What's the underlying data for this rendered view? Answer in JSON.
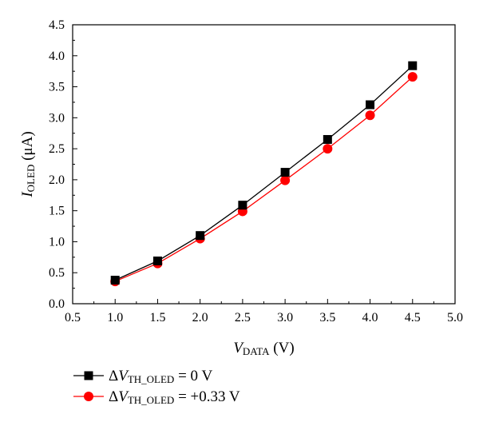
{
  "chart_data": {
    "type": "line",
    "x": [
      1.0,
      1.5,
      2.0,
      2.5,
      3.0,
      3.5,
      4.0,
      4.5
    ],
    "series": [
      {
        "name": "ΔVTH_OLED = 0 V",
        "name_parts": {
          "delta": "Δ",
          "var": "V",
          "sub": "TH_OLED",
          "rest": " = 0 V"
        },
        "values": [
          0.38,
          0.69,
          1.1,
          1.59,
          2.12,
          2.65,
          3.21,
          3.84
        ],
        "color": "#000000",
        "marker": "square"
      },
      {
        "name": "ΔVTH_OLED = +0.33 V",
        "name_parts": {
          "delta": "Δ",
          "var": "V",
          "sub": "TH_OLED",
          "rest": " = +0.33 V"
        },
        "values": [
          0.36,
          0.65,
          1.05,
          1.49,
          1.99,
          2.5,
          3.04,
          3.66
        ],
        "color": "#ff0000",
        "marker": "circle"
      }
    ],
    "xlim": [
      0.5,
      5.0
    ],
    "ylim": [
      0.0,
      4.5
    ],
    "xticks": [
      "0.5",
      "1.0",
      "1.5",
      "2.0",
      "2.5",
      "3.0",
      "3.5",
      "4.0",
      "4.5",
      "5.0"
    ],
    "yticks": [
      "0.0",
      "0.5",
      "1.0",
      "1.5",
      "2.0",
      "2.5",
      "3.0",
      "3.5",
      "4.0",
      "4.5"
    ],
    "xlabel": {
      "var": "V",
      "sub": "DATA",
      "rest": " (V)"
    },
    "ylabel": {
      "var": "I",
      "sub": "OLED",
      "rest": " (μA)"
    },
    "grid": false,
    "legend_position": "bottom-left, below plot"
  }
}
